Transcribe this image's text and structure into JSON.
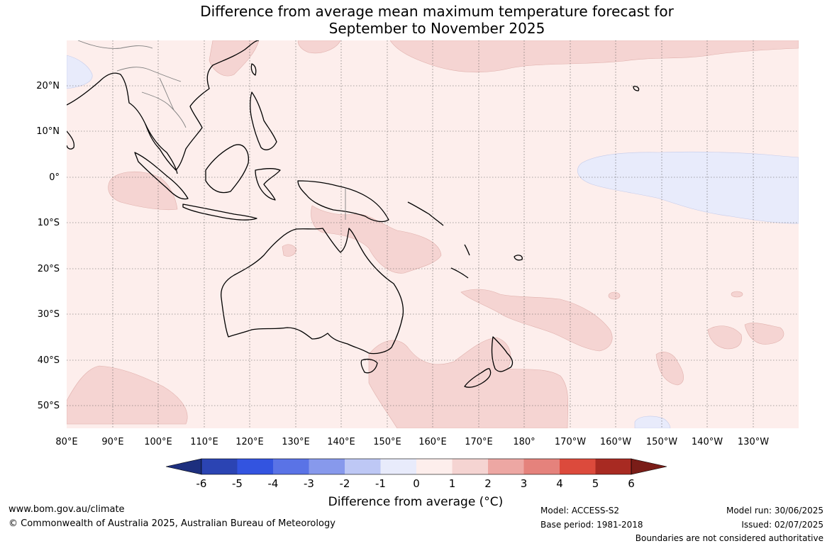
{
  "title_line1": "Difference from average mean maximum temperature forecast for",
  "title_line2": "September to November 2025",
  "lat_labels": [
    "20°N",
    "10°N",
    "0°",
    "10°S",
    "20°S",
    "30°S",
    "40°S",
    "50°S"
  ],
  "lon_labels": [
    "80°E",
    "90°E",
    "100°E",
    "110°E",
    "120°E",
    "130°E",
    "140°E",
    "150°E",
    "160°E",
    "170°E",
    "180°",
    "170°W",
    "160°W",
    "150°W",
    "140°W",
    "130°W"
  ],
  "colorbar": {
    "title": "Difference from average (°C)",
    "tick_labels": [
      "-6",
      "-5",
      "-4",
      "-3",
      "-2",
      "-1",
      "0",
      "1",
      "2",
      "3",
      "4",
      "5",
      "6"
    ],
    "colors": [
      "#1d2f7e",
      "#2b44b3",
      "#3354e0",
      "#5a73e6",
      "#8799ec",
      "#bec8f5",
      "#e8ebfb",
      "#fdeeec",
      "#f5d4d2",
      "#eda7a3",
      "#e5827c",
      "#dc4a3c",
      "#a82a22",
      "#7a1d18"
    ]
  },
  "footer": {
    "website": "www.bom.gov.au/climate",
    "copyright": "© Commonwealth of Australia 2025, Australian Bureau of Meteorology",
    "model": "Model: ACCESS-S2",
    "base_period": "Base period: 1981-2018",
    "model_run": "Model run: 30/06/2025",
    "issued": "Issued: 02/07/2025",
    "disclaimer": "Boundaries are not considered authoritative"
  },
  "map_colors": {
    "ocean_base": "#fdeeec",
    "warm_anomaly": "#f5d4d2",
    "cool_anomaly": "#e8ebfb",
    "coastline": "#000000",
    "borders": "#7f7f7f"
  }
}
